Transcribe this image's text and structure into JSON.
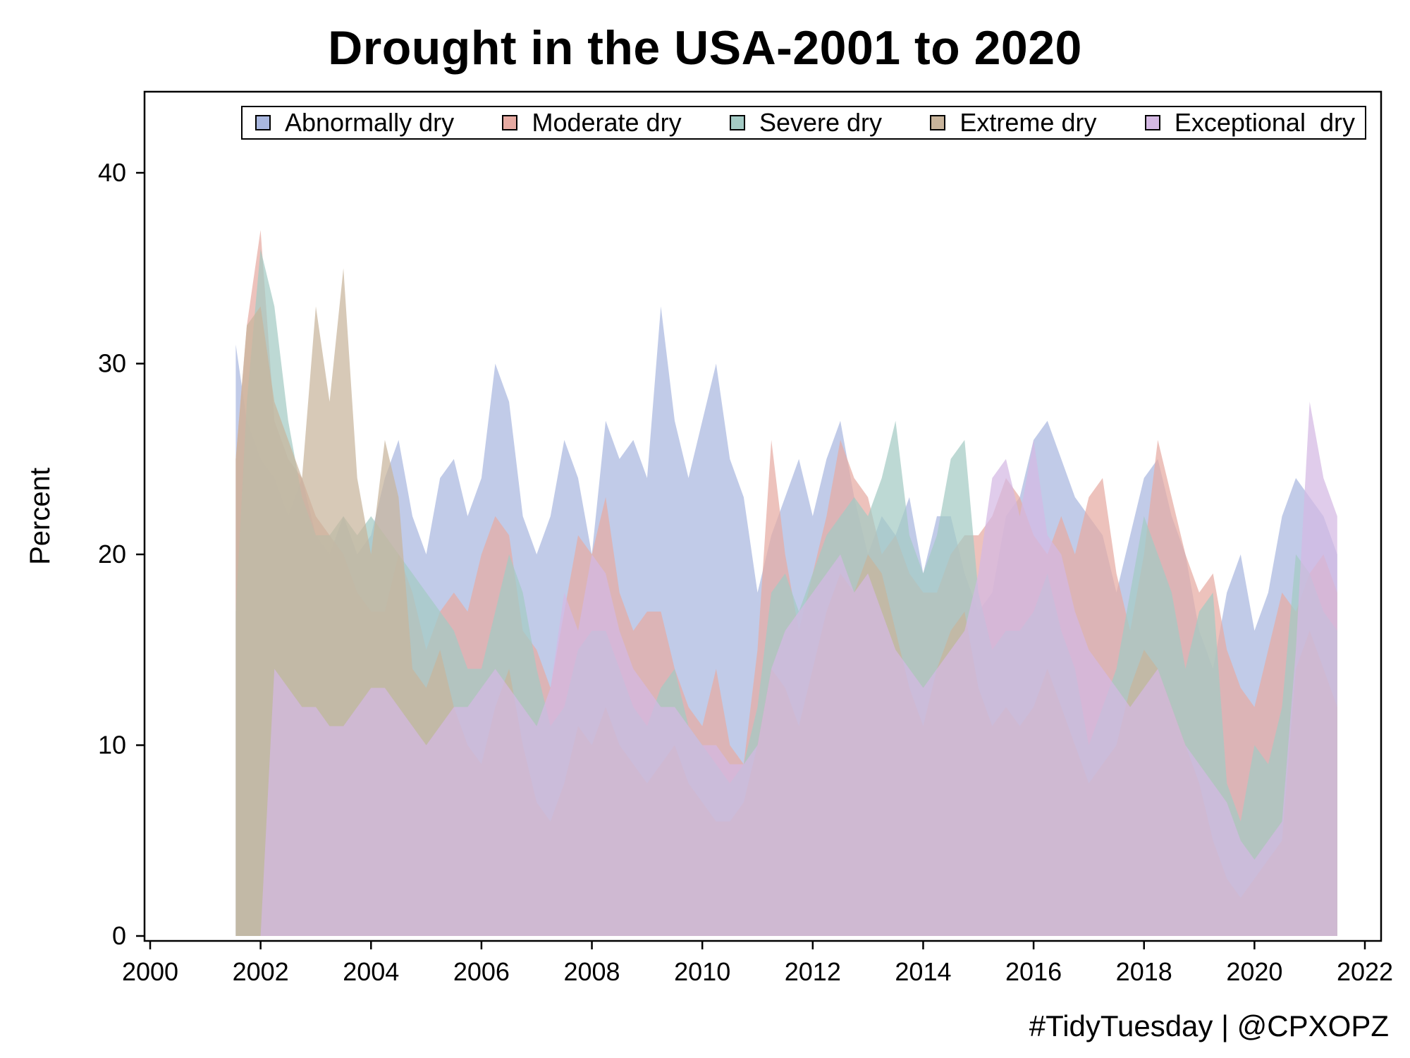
{
  "chart_data": {
    "type": "area",
    "title": "Drought in the USA-2001 to 2020",
    "xlabel": "",
    "ylabel": "Percent",
    "xlim": [
      2000,
      2022
    ],
    "ylim": [
      0,
      44
    ],
    "x_ticks": [
      "2000",
      "2002",
      "2004",
      "2006",
      "2008",
      "2010",
      "2012",
      "2014",
      "2016",
      "2018",
      "2020",
      "2022"
    ],
    "y_ticks": [
      "0",
      "10",
      "20",
      "30",
      "40"
    ],
    "grid": false,
    "legend_placement": "top",
    "x": [
      2001.55,
      2001.75,
      2002.0,
      2002.25,
      2002.5,
      2002.75,
      2003.0,
      2003.25,
      2003.5,
      2003.75,
      2004.0,
      2004.25,
      2004.5,
      2004.75,
      2005.0,
      2005.25,
      2005.5,
      2005.75,
      2006.0,
      2006.25,
      2006.5,
      2006.75,
      2007.0,
      2007.25,
      2007.5,
      2007.75,
      2008.0,
      2008.25,
      2008.5,
      2008.75,
      2009.0,
      2009.25,
      2009.5,
      2009.75,
      2010.0,
      2010.25,
      2010.5,
      2010.75,
      2011.0,
      2011.25,
      2011.5,
      2011.75,
      2012.0,
      2012.25,
      2012.5,
      2012.75,
      2013.0,
      2013.25,
      2013.5,
      2013.75,
      2014.0,
      2014.25,
      2014.5,
      2014.75,
      2015.0,
      2015.25,
      2015.5,
      2015.75,
      2016.0,
      2016.25,
      2016.5,
      2016.75,
      2017.0,
      2017.25,
      2017.5,
      2017.75,
      2018.0,
      2018.25,
      2018.5,
      2018.75,
      2019.0,
      2019.25,
      2019.5,
      2019.75,
      2020.0,
      2020.25,
      2020.5,
      2020.75,
      2021.0,
      2021.25,
      2021.5
    ],
    "series": [
      {
        "name": "Abnormally dry",
        "color": "#a9b7df",
        "values": [
          31,
          27,
          25,
          24,
          22,
          24,
          21,
          20,
          22,
          20,
          21,
          24,
          26,
          22,
          20,
          24,
          25,
          22,
          24,
          30,
          28,
          22,
          20,
          22,
          26,
          24,
          20,
          27,
          25,
          26,
          24,
          33,
          27,
          24,
          27,
          30,
          25,
          23,
          18,
          21,
          23,
          25,
          22,
          25,
          27,
          23,
          20,
          22,
          21,
          23,
          19,
          22,
          22,
          19,
          17,
          18,
          22,
          23,
          26,
          27,
          25,
          23,
          22,
          21,
          18,
          21,
          24,
          25,
          22,
          20,
          16,
          14,
          18,
          20,
          16,
          18,
          22,
          24,
          23,
          22,
          20
        ]
      },
      {
        "name": "Moderate dry",
        "color": "#e6aaa2",
        "values": [
          25,
          32,
          37,
          27,
          25,
          24,
          22,
          21,
          20,
          18,
          17,
          17,
          20,
          18,
          15,
          17,
          18,
          17,
          20,
          22,
          21,
          16,
          15,
          13,
          17,
          21,
          20,
          23,
          18,
          16,
          17,
          17,
          14,
          12,
          11,
          14,
          10,
          9,
          15,
          26,
          20,
          16,
          19,
          22,
          26,
          24,
          23,
          20,
          21,
          19,
          18,
          18,
          20,
          21,
          21,
          22,
          24,
          23,
          21,
          20,
          22,
          20,
          23,
          24,
          19,
          16,
          20,
          26,
          23,
          20,
          18,
          19,
          15,
          13,
          12,
          15,
          18,
          17,
          19,
          20,
          18
        ]
      },
      {
        "name": "Severe dry",
        "color": "#a3cac4",
        "values": [
          17,
          28,
          36,
          33,
          27,
          23,
          21,
          21,
          22,
          21,
          22,
          21,
          20,
          19,
          18,
          17,
          16,
          14,
          14,
          17,
          20,
          18,
          14,
          11,
          12,
          15,
          16,
          16,
          14,
          12,
          11,
          13,
          14,
          11,
          10,
          9,
          8,
          9,
          12,
          18,
          19,
          17,
          19,
          21,
          22,
          23,
          22,
          24,
          27,
          21,
          19,
          21,
          25,
          26,
          18,
          15,
          16,
          16,
          17,
          19,
          16,
          14,
          10,
          12,
          14,
          18,
          22,
          20,
          18,
          14,
          17,
          18,
          8,
          6,
          10,
          9,
          12,
          20,
          19,
          17,
          16
        ]
      },
      {
        "name": "Extreme dry",
        "color": "#c8b49b",
        "values": [
          25,
          32,
          33,
          28,
          26,
          24,
          33,
          28,
          35,
          24,
          20,
          26,
          23,
          14,
          13,
          15,
          12,
          10,
          9,
          12,
          14,
          10,
          7,
          6,
          8,
          11,
          10,
          12,
          10,
          9,
          8,
          9,
          10,
          8,
          7,
          6,
          6,
          7,
          10,
          14,
          13,
          11,
          14,
          17,
          19,
          18,
          20,
          19,
          16,
          13,
          11,
          14,
          16,
          17,
          13,
          11,
          12,
          11,
          12,
          14,
          12,
          10,
          8,
          9,
          10,
          13,
          15,
          14,
          12,
          10,
          8,
          5,
          3,
          2,
          3,
          4,
          5,
          14,
          16,
          14,
          12
        ]
      },
      {
        "name": "Exceptional  dry",
        "color": "#d4b8e3",
        "values": [
          0,
          0,
          0,
          14,
          13,
          12,
          12,
          11,
          11,
          12,
          13,
          13,
          12,
          11,
          10,
          11,
          12,
          12,
          13,
          14,
          13,
          12,
          11,
          13,
          18,
          16,
          20,
          19,
          16,
          14,
          13,
          12,
          12,
          11,
          10,
          10,
          9,
          9,
          10,
          14,
          16,
          17,
          18,
          19,
          20,
          18,
          19,
          17,
          15,
          14,
          13,
          14,
          15,
          16,
          19,
          24,
          25,
          22,
          26,
          21,
          20,
          17,
          15,
          14,
          13,
          12,
          13,
          14,
          12,
          10,
          9,
          8,
          7,
          5,
          4,
          5,
          6,
          15,
          28,
          24,
          22
        ]
      }
    ]
  },
  "credit": "#TidyTuesday | @CPXOPZ"
}
